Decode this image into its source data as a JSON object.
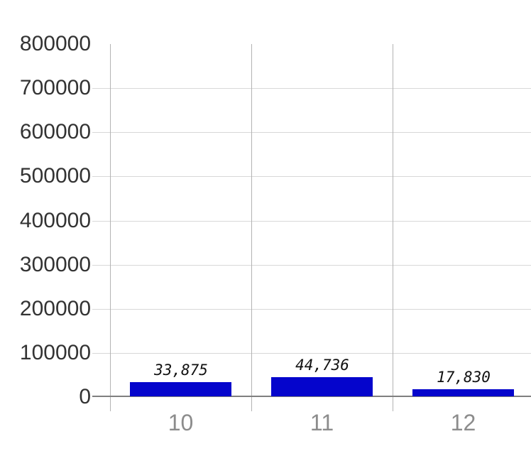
{
  "chart_data": {
    "type": "bar",
    "title": "",
    "xlabel": "",
    "ylabel": "",
    "categories": [
      "10",
      "11",
      "12"
    ],
    "values": [
      33875,
      44736,
      17830
    ],
    "value_labels": [
      "33,875",
      "44,736",
      "17,830"
    ],
    "ylim": [
      0,
      800000
    ],
    "y_ticks": [
      0,
      100000,
      200000,
      300000,
      400000,
      500000,
      600000,
      700000,
      800000
    ],
    "y_tick_labels": [
      "0",
      "100000",
      "200000",
      "300000",
      "400000",
      "500000",
      "600000",
      "700000",
      "800000"
    ],
    "legend": "none",
    "grid": {
      "horizontal": true,
      "vertical_category_boundaries": true,
      "top_boundary_line": false
    },
    "colors": {
      "bar_fill": "#0505cc",
      "horizontal_gridline": "#d8d8d8",
      "vertical_gridline": "#b3b3b3",
      "axis_line": "#7f7f7f",
      "y_tick_text": "#333333",
      "x_tick_text": "#8c8c8c",
      "value_label_text": "#111111",
      "background": "#ffffff"
    }
  }
}
